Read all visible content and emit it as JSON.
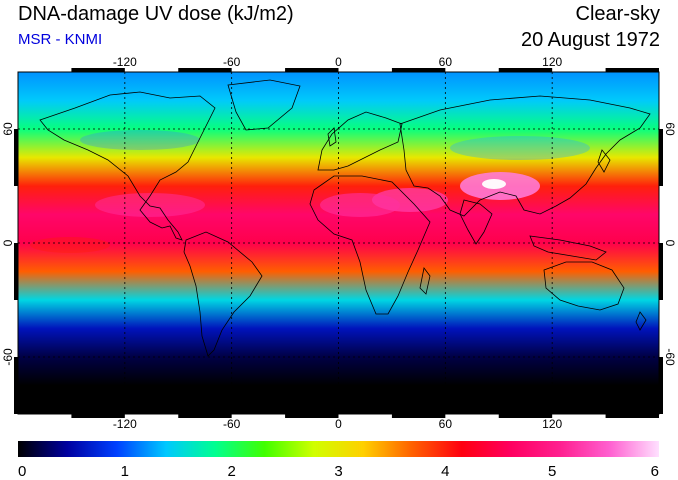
{
  "header": {
    "title": "DNA-damage UV dose (kJ/m2)",
    "credit": "MSR - KNMI",
    "condition": "Clear-sky",
    "date": "20 August 1972"
  },
  "map": {
    "lon_range": [
      -180,
      180
    ],
    "lat_range": [
      -90,
      90
    ],
    "gridlines": "dotted",
    "lon_ticks": [
      -120,
      -60,
      0,
      60,
      120
    ],
    "lon_tick_labels": [
      "-120",
      "-60",
      "0",
      "60",
      "120"
    ],
    "lat_ticks": [
      -60,
      0,
      60
    ],
    "lat_tick_labels": [
      "-60",
      "0",
      "60"
    ]
  },
  "colorbar": {
    "range": [
      0,
      6
    ],
    "tick_values": [
      0,
      1,
      2,
      3,
      4,
      5,
      6
    ],
    "tick_labels": [
      "0",
      "1",
      "2",
      "3",
      "4",
      "5",
      "6"
    ],
    "colors": [
      "#000000",
      "#0000a0",
      "#0040ff",
      "#00c8ff",
      "#00ff90",
      "#40ff00",
      "#d0ff00",
      "#ffd000",
      "#ff6000",
      "#ff0010",
      "#ff0060",
      "#ff2090",
      "#ff60d0",
      "#ffe0ff"
    ]
  },
  "chart_data": {
    "type": "heatmap",
    "x": [
      -180,
      -150,
      -120,
      -90,
      -60,
      -30,
      0,
      30,
      60,
      90,
      120,
      150,
      180
    ],
    "y": [
      90,
      75,
      60,
      45,
      30,
      15,
      0,
      -15,
      -30,
      -45,
      -60,
      -75,
      -90
    ],
    "zonal_mean_values": [
      1.2,
      1.4,
      1.9,
      3.0,
      4.0,
      4.7,
      4.5,
      3.7,
      1.5,
      0.6,
      0.2,
      0.0,
      0.0
    ],
    "colorbar_range": [
      0,
      6
    ],
    "xlabel": "",
    "ylabel": ""
  }
}
